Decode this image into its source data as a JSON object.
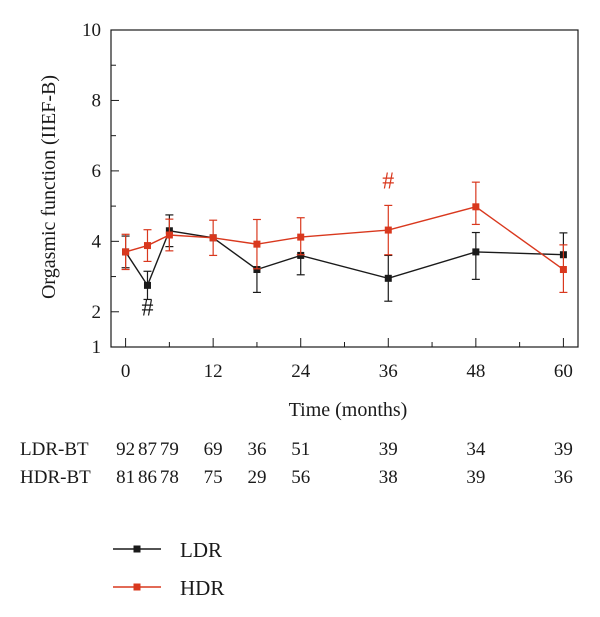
{
  "chart_data": {
    "type": "line",
    "xlabel": "Time (months)",
    "ylabel": "Orgasmic function (IIEF-B)",
    "xlim": [
      -2,
      62
    ],
    "ylim": [
      1,
      10
    ],
    "xticks": [
      "0",
      "12",
      "24",
      "36",
      "48",
      "60"
    ],
    "yticks": [
      "1",
      "2",
      "4",
      "6",
      "8",
      "10"
    ],
    "x": [
      0,
      3,
      6,
      12,
      18,
      24,
      36,
      48,
      60
    ],
    "series": [
      {
        "name": "LDR",
        "color": "#1a1a1a",
        "values": [
          3.7,
          2.75,
          4.3,
          4.1,
          3.2,
          3.6,
          2.95,
          3.7,
          3.62
        ],
        "err_low": [
          0.45,
          0.4,
          0.45,
          0.0,
          0.65,
          0.55,
          0.65,
          0.78,
          0.0
        ],
        "err_high": [
          0.45,
          0.4,
          0.45,
          0.0,
          0.0,
          0.0,
          0.65,
          0.55,
          0.62
        ]
      },
      {
        "name": "HDR",
        "color": "#d9381e",
        "values": [
          3.7,
          3.88,
          4.18,
          4.1,
          3.92,
          4.12,
          4.32,
          4.98,
          3.2
        ],
        "err_low": [
          0.5,
          0.45,
          0.45,
          0.5,
          0.7,
          0.5,
          0.7,
          0.5,
          0.65
        ],
        "err_high": [
          0.5,
          0.45,
          0.45,
          0.5,
          0.7,
          0.55,
          0.7,
          0.7,
          0.7
        ]
      }
    ],
    "annotations": [
      {
        "text": "#",
        "x": 3,
        "y": 1.9,
        "color": "#1a1a1a"
      },
      {
        "text": "#",
        "x": 36,
        "y": 5.5,
        "color": "#d9381e"
      }
    ],
    "legend": {
      "placement": "bottom-left",
      "items": [
        "LDR",
        "HDR"
      ]
    }
  },
  "at_risk": {
    "rows": [
      {
        "label": "LDR-BT",
        "values": [
          "92",
          "87",
          "79",
          "69",
          "36",
          "51",
          "39",
          "34",
          "39"
        ]
      },
      {
        "label": "HDR-BT",
        "values": [
          "81",
          "86",
          "78",
          "75",
          "29",
          "56",
          "38",
          "39",
          "36"
        ]
      }
    ]
  }
}
